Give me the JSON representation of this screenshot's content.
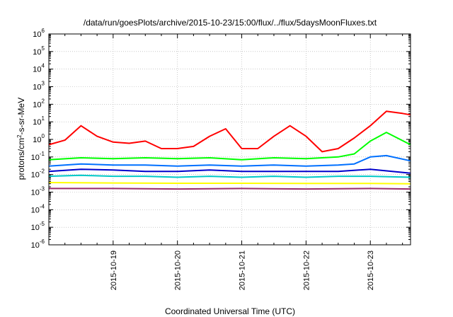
{
  "chart_data": {
    "type": "line",
    "title": "/data/run/goesPlots/archive/2015-10-23/15:00/flux/../flux/5daysMoonFluxes.txt",
    "xlabel": "Coordinated Universal Time (UTC)",
    "ylabel": "protons/cm²-s-sr-MeV",
    "yscale": "log",
    "ylim": [
      1e-06,
      1000000.0
    ],
    "xlim": [
      "2015-10-18 00:00",
      "2015-10-23 15:00"
    ],
    "yticks": [
      {
        "base": "10",
        "exp": "-6"
      },
      {
        "base": "10",
        "exp": "-5"
      },
      {
        "base": "10",
        "exp": "-4"
      },
      {
        "base": "10",
        "exp": "-3"
      },
      {
        "base": "10",
        "exp": "-2"
      },
      {
        "base": "10",
        "exp": "-1"
      },
      {
        "base": "10",
        "exp": "0"
      },
      {
        "base": "10",
        "exp": "1"
      },
      {
        "base": "10",
        "exp": "2"
      },
      {
        "base": "10",
        "exp": "3"
      },
      {
        "base": "10",
        "exp": "4"
      },
      {
        "base": "10",
        "exp": "5"
      },
      {
        "base": "10",
        "exp": "6"
      }
    ],
    "xticks": [
      "2015-10-19",
      "2015-10-20",
      "2015-10-21",
      "2015-10-22",
      "2015-10-23"
    ],
    "grid": true,
    "series": [
      {
        "color": "#ff0000",
        "x": [
          "2015-10-18 00:00",
          "2015-10-18 06:00",
          "2015-10-18 12:00",
          "2015-10-18 18:00",
          "2015-10-19 00:00",
          "2015-10-19 06:00",
          "2015-10-19 12:00",
          "2015-10-19 18:00",
          "2015-10-20 00:00",
          "2015-10-20 06:00",
          "2015-10-20 12:00",
          "2015-10-20 18:00",
          "2015-10-21 00:00",
          "2015-10-21 06:00",
          "2015-10-21 12:00",
          "2015-10-21 18:00",
          "2015-10-22 00:00",
          "2015-10-22 06:00",
          "2015-10-22 12:00",
          "2015-10-22 18:00",
          "2015-10-23 00:00",
          "2015-10-23 06:00",
          "2015-10-23 12:00",
          "2015-10-23 15:00"
        ],
        "y": [
          0.5,
          0.9,
          6,
          1.5,
          0.7,
          0.6,
          0.8,
          0.3,
          0.3,
          0.4,
          1.5,
          4,
          0.3,
          0.3,
          1.5,
          6,
          1.5,
          0.2,
          0.3,
          1.2,
          6,
          40,
          30,
          25
        ]
      },
      {
        "color": "#00ff00",
        "x": [
          "2015-10-18 00:00",
          "2015-10-18 12:00",
          "2015-10-19 00:00",
          "2015-10-19 12:00",
          "2015-10-20 00:00",
          "2015-10-20 12:00",
          "2015-10-21 00:00",
          "2015-10-21 12:00",
          "2015-10-22 00:00",
          "2015-10-22 12:00",
          "2015-10-22 18:00",
          "2015-10-23 00:00",
          "2015-10-23 06:00",
          "2015-10-23 15:00"
        ],
        "y": [
          0.07,
          0.09,
          0.08,
          0.09,
          0.08,
          0.09,
          0.07,
          0.09,
          0.08,
          0.1,
          0.15,
          0.8,
          2.5,
          0.5
        ]
      },
      {
        "color": "#0070ff",
        "x": [
          "2015-10-18 00:00",
          "2015-10-18 12:00",
          "2015-10-19 00:00",
          "2015-10-19 12:00",
          "2015-10-20 00:00",
          "2015-10-20 12:00",
          "2015-10-21 00:00",
          "2015-10-21 12:00",
          "2015-10-22 00:00",
          "2015-10-22 12:00",
          "2015-10-22 18:00",
          "2015-10-23 00:00",
          "2015-10-23 06:00",
          "2015-10-23 15:00"
        ],
        "y": [
          0.03,
          0.04,
          0.035,
          0.035,
          0.03,
          0.035,
          0.03,
          0.035,
          0.03,
          0.035,
          0.04,
          0.1,
          0.12,
          0.06
        ]
      },
      {
        "color": "#0000cc",
        "x": [
          "2015-10-18 00:00",
          "2015-10-18 12:00",
          "2015-10-19 00:00",
          "2015-10-19 12:00",
          "2015-10-20 00:00",
          "2015-10-20 12:00",
          "2015-10-21 00:00",
          "2015-10-21 12:00",
          "2015-10-22 00:00",
          "2015-10-22 12:00",
          "2015-10-23 00:00",
          "2015-10-23 15:00"
        ],
        "y": [
          0.015,
          0.02,
          0.018,
          0.015,
          0.015,
          0.018,
          0.015,
          0.015,
          0.015,
          0.015,
          0.02,
          0.012
        ]
      },
      {
        "color": "#00c8c8",
        "x": [
          "2015-10-18 00:00",
          "2015-10-18 12:00",
          "2015-10-19 00:00",
          "2015-10-19 12:00",
          "2015-10-20 00:00",
          "2015-10-20 12:00",
          "2015-10-21 00:00",
          "2015-10-21 12:00",
          "2015-10-22 00:00",
          "2015-10-22 12:00",
          "2015-10-23 00:00",
          "2015-10-23 15:00"
        ],
        "y": [
          0.008,
          0.009,
          0.008,
          0.008,
          0.007,
          0.008,
          0.007,
          0.008,
          0.007,
          0.008,
          0.008,
          0.007
        ]
      },
      {
        "color": "#ffff00",
        "x": [
          "2015-10-18 00:00",
          "2015-10-19 00:00",
          "2015-10-20 00:00",
          "2015-10-21 00:00",
          "2015-10-22 00:00",
          "2015-10-23 00:00",
          "2015-10-23 15:00"
        ],
        "y": [
          0.0035,
          0.0033,
          0.0032,
          0.0032,
          0.0031,
          0.0031,
          0.003
        ]
      },
      {
        "color": "#9a2a6a",
        "x": [
          "2015-10-18 00:00",
          "2015-10-19 00:00",
          "2015-10-20 00:00",
          "2015-10-21 00:00",
          "2015-10-22 00:00",
          "2015-10-23 00:00",
          "2015-10-23 15:00"
        ],
        "y": [
          0.0016,
          0.0016,
          0.0015,
          0.0016,
          0.0015,
          0.0016,
          0.0015
        ]
      }
    ]
  }
}
